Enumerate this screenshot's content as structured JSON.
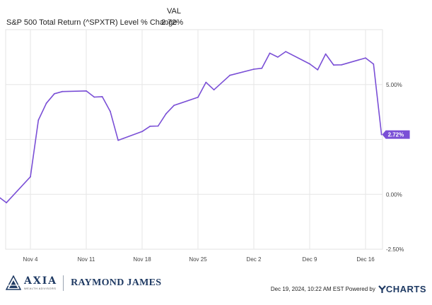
{
  "legend": {
    "header": "VAL",
    "series_name": "S&P 500 Total Return (^SPXTR) Level % Change",
    "series_value": "2.72%"
  },
  "chart_data": {
    "type": "line",
    "title": "",
    "xlabel": "",
    "ylabel": "",
    "x_ticks": [
      "Nov 4",
      "Nov 11",
      "Nov 18",
      "Nov 25",
      "Dec 2",
      "Dec 9",
      "Dec 16"
    ],
    "y_ticks": [
      "5.00%",
      "0.00%",
      "-2.50%"
    ],
    "ylim": [
      -2.5,
      7.5
    ],
    "grid": true,
    "line_color": "#7a4fd6",
    "end_label": "2.72%",
    "series": [
      {
        "x": [
          "Oct 31",
          "Nov 1",
          "Nov 4",
          "Nov 5",
          "Nov 6",
          "Nov 7",
          "Nov 8",
          "Nov 11",
          "Nov 12",
          "Nov 13",
          "Nov 14",
          "Nov 15",
          "Nov 18",
          "Nov 19",
          "Nov 20",
          "Nov 21",
          "Nov 22",
          "Nov 25",
          "Nov 26",
          "Nov 27",
          "Nov 29",
          "Dec 2",
          "Dec 3",
          "Dec 4",
          "Dec 5",
          "Dec 6",
          "Dec 9",
          "Dec 10",
          "Dec 11",
          "Dec 12",
          "Dec 13",
          "Dec 16",
          "Dec 17",
          "Dec 18"
        ],
        "values": [
          -0.11,
          -0.38,
          0.8,
          3.38,
          4.15,
          4.58,
          4.68,
          4.71,
          4.43,
          4.45,
          3.78,
          2.46,
          2.86,
          3.1,
          3.11,
          3.67,
          4.05,
          4.42,
          5.1,
          4.76,
          5.42,
          5.7,
          5.74,
          6.43,
          6.25,
          6.5,
          5.94,
          5.67,
          6.39,
          5.89,
          5.9,
          6.21,
          5.93,
          2.72
        ]
      }
    ]
  },
  "footer": {
    "axia_word": "AXIA",
    "axia_subtitle": "WEALTH ADVISORS",
    "rj_word": "RAYMOND JAMES",
    "source_text": "Dec 19, 2024, 10:22 AM EST Powered by",
    "ycharts_word": "CHARTS",
    "ycharts_icon": "ycharts-y-logo-icon",
    "axia_icon": "axia-triangle-logo-icon"
  }
}
